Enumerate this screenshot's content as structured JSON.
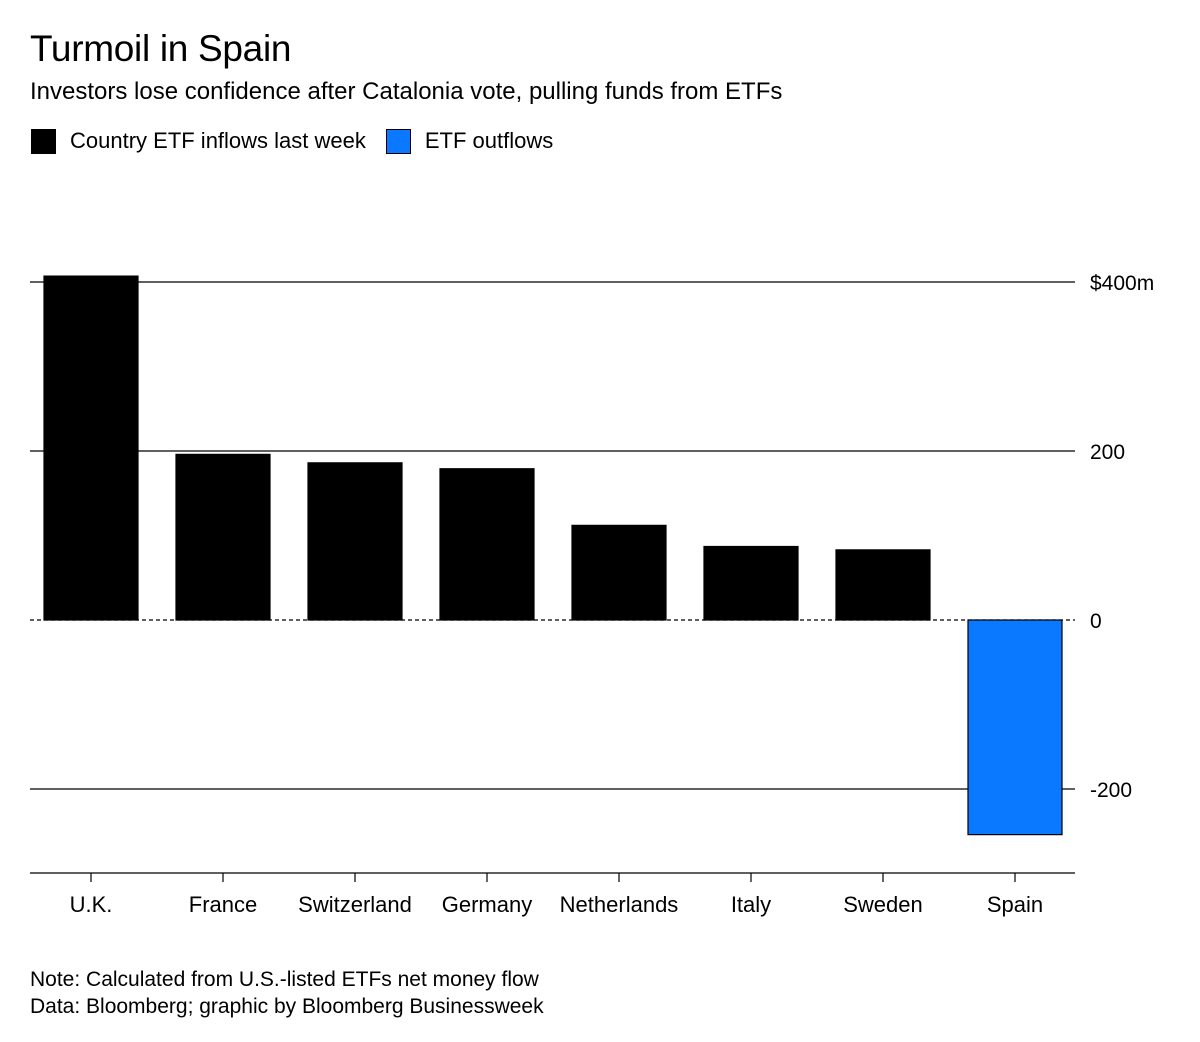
{
  "header": {
    "title": "Turmoil in Spain",
    "subtitle": "Investors lose confidence after Catalonia vote, pulling funds from ETFs"
  },
  "legend": [
    {
      "label": "Country ETF inflows last week",
      "color": "#000000"
    },
    {
      "label": "ETF outflows",
      "color": "#0A78FF"
    }
  ],
  "footer": {
    "note": "Note: Calculated from U.S.-listed ETFs net money flow",
    "source": "Data: Bloomberg; graphic by Bloomberg Businessweek"
  },
  "chart_data": {
    "type": "bar",
    "title": "Turmoil in Spain",
    "subtitle": "Investors lose confidence after Catalonia vote, pulling funds from ETFs",
    "categories": [
      "U.K.",
      "France",
      "Switzerland",
      "Germany",
      "Netherlands",
      "Italy",
      "Sweden",
      "Spain"
    ],
    "series": [
      {
        "name": "Country ETF inflows last week",
        "values": [
          407,
          196,
          186,
          179,
          112,
          87,
          83,
          null
        ],
        "color": "#000000"
      },
      {
        "name": "ETF outflows",
        "values": [
          null,
          null,
          null,
          null,
          null,
          null,
          null,
          -254
        ],
        "color": "#0A78FF"
      }
    ],
    "ylim": [
      -300,
      400
    ],
    "yticks": [
      400,
      200,
      0,
      -200
    ],
    "ytick_labels": [
      "$400m",
      "200",
      "0",
      "-200"
    ],
    "xlabel": "",
    "ylabel": "",
    "grid": true,
    "legend_position": "top-left"
  }
}
